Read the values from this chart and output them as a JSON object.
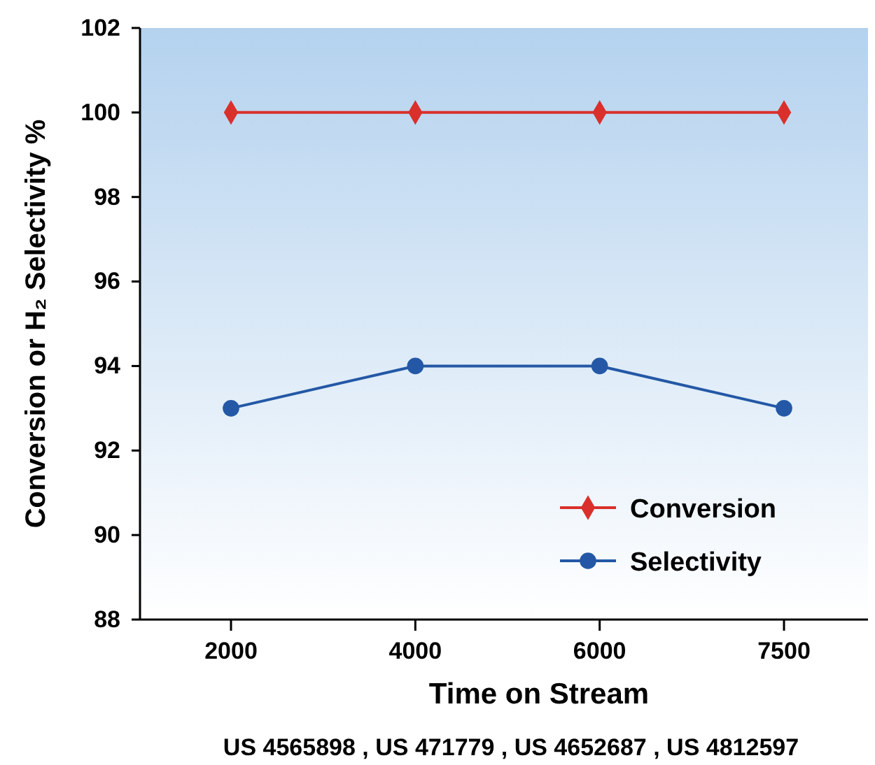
{
  "chart_data": {
    "type": "line",
    "categories": [
      "2000",
      "4000",
      "6000",
      "7500"
    ],
    "series": [
      {
        "name": "Conversion",
        "color": "#d9302c",
        "values": [
          100,
          100,
          100,
          100
        ],
        "marker": "diamond"
      },
      {
        "name": "Selectivity",
        "color": "#2458a6",
        "values": [
          93,
          94,
          94,
          93
        ],
        "marker": "circle"
      }
    ],
    "ylim": [
      88,
      102
    ],
    "yticks": [
      88,
      90,
      92,
      94,
      96,
      98,
      100,
      102
    ],
    "xlabel": "Time on Stream",
    "ylabel": "Conversion or  H₂ Selectivity %",
    "annotations": [
      "US 4565898 , US 471779 , US 4652687 , US 4812597"
    ],
    "legend": "bottom right",
    "grid": false,
    "line_style": "solid"
  }
}
